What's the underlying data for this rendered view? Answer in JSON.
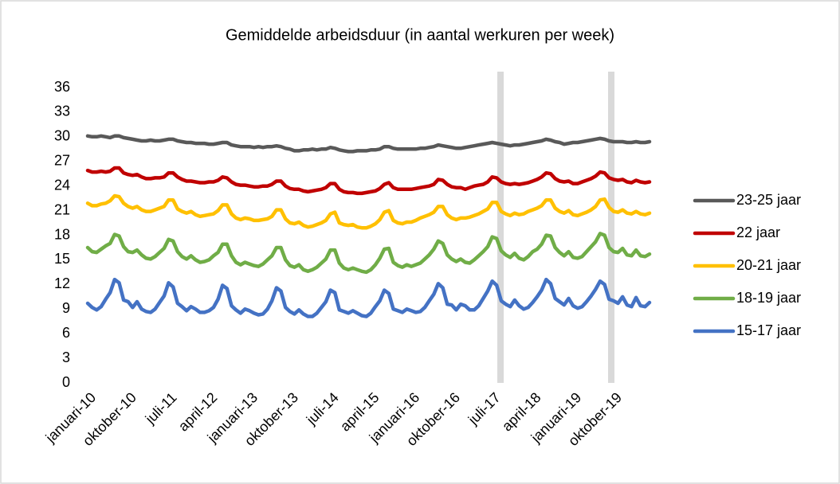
{
  "chart_data": {
    "type": "line",
    "title": "Gemiddelde arbeidsduur (in aantal werkuren per week)",
    "categories": [
      "januari-10",
      null,
      null,
      null,
      null,
      null,
      null,
      null,
      null,
      "oktober-10",
      null,
      null,
      null,
      null,
      null,
      null,
      null,
      null,
      "juli-11",
      null,
      null,
      null,
      null,
      null,
      null,
      null,
      null,
      "april-12",
      null,
      null,
      null,
      null,
      null,
      null,
      null,
      null,
      "januari-13",
      null,
      null,
      null,
      null,
      null,
      null,
      null,
      null,
      "oktober-13",
      null,
      null,
      null,
      null,
      null,
      null,
      null,
      null,
      "juli-14",
      null,
      null,
      null,
      null,
      null,
      null,
      null,
      null,
      "april-15",
      null,
      null,
      null,
      null,
      null,
      null,
      null,
      null,
      "januari-16",
      null,
      null,
      null,
      null,
      null,
      null,
      null,
      null,
      "oktober-16",
      null,
      null,
      null,
      null,
      null,
      null,
      null,
      null,
      "juli-17",
      null,
      null,
      null,
      null,
      null,
      null,
      null,
      null,
      "april-18",
      null,
      null,
      null,
      null,
      null,
      null,
      null,
      null,
      "januari-19",
      null,
      null,
      null,
      null,
      null,
      null,
      null,
      null,
      "oktober-19",
      null,
      null,
      null,
      null,
      null,
      null,
      null,
      null
    ],
    "ylim": [
      0,
      36
    ],
    "yticks": [
      0,
      3,
      6,
      9,
      12,
      15,
      18,
      21,
      24,
      27,
      30,
      33,
      36
    ],
    "grid": false,
    "legend": "right",
    "series": [
      {
        "name": "23-25 jaar",
        "color": "#595959",
        "values": [
          30.1,
          30.0,
          30.0,
          30.1,
          30.0,
          29.9,
          30.1,
          30.1,
          29.9,
          29.8,
          29.7,
          29.6,
          29.5,
          29.5,
          29.6,
          29.5,
          29.5,
          29.6,
          29.7,
          29.7,
          29.5,
          29.4,
          29.3,
          29.3,
          29.2,
          29.2,
          29.2,
          29.1,
          29.1,
          29.2,
          29.3,
          29.3,
          29.0,
          28.9,
          28.8,
          28.8,
          28.8,
          28.7,
          28.8,
          28.7,
          28.8,
          28.8,
          28.9,
          28.8,
          28.6,
          28.5,
          28.3,
          28.3,
          28.4,
          28.4,
          28.5,
          28.4,
          28.5,
          28.5,
          28.7,
          28.6,
          28.4,
          28.3,
          28.2,
          28.2,
          28.3,
          28.3,
          28.3,
          28.4,
          28.4,
          28.5,
          28.8,
          28.8,
          28.6,
          28.5,
          28.5,
          28.5,
          28.5,
          28.5,
          28.6,
          28.6,
          28.7,
          28.8,
          29.0,
          28.9,
          28.8,
          28.7,
          28.6,
          28.6,
          28.7,
          28.8,
          28.9,
          29.0,
          29.1,
          29.2,
          29.3,
          29.2,
          29.1,
          29.0,
          28.9,
          29.0,
          29.0,
          29.1,
          29.2,
          29.3,
          29.4,
          29.5,
          29.7,
          29.6,
          29.4,
          29.3,
          29.1,
          29.2,
          29.3,
          29.3,
          29.4,
          29.5,
          29.6,
          29.7,
          29.8,
          29.7,
          29.5,
          29.4,
          29.4,
          29.4,
          29.3,
          29.3,
          29.4,
          29.3,
          29.3,
          29.4
        ]
      },
      {
        "name": "22 jaar",
        "color": "#c00000",
        "values": [
          25.9,
          25.7,
          25.7,
          25.8,
          25.7,
          25.8,
          26.2,
          26.2,
          25.6,
          25.4,
          25.3,
          25.4,
          25.1,
          24.9,
          24.9,
          25.0,
          25.0,
          25.1,
          25.6,
          25.6,
          25.1,
          24.8,
          24.6,
          24.6,
          24.5,
          24.4,
          24.4,
          24.5,
          24.5,
          24.7,
          25.1,
          25.0,
          24.5,
          24.2,
          24.1,
          24.1,
          24.0,
          23.9,
          23.9,
          24.0,
          24.0,
          24.2,
          24.6,
          24.6,
          24.0,
          23.7,
          23.6,
          23.6,
          23.4,
          23.3,
          23.4,
          23.5,
          23.6,
          23.8,
          24.3,
          24.3,
          23.6,
          23.3,
          23.2,
          23.2,
          23.1,
          23.1,
          23.2,
          23.3,
          23.4,
          23.7,
          24.2,
          24.4,
          23.8,
          23.6,
          23.6,
          23.6,
          23.6,
          23.7,
          23.8,
          23.9,
          24.0,
          24.2,
          24.8,
          24.7,
          24.2,
          23.9,
          23.8,
          23.8,
          23.6,
          23.8,
          24.0,
          24.1,
          24.2,
          24.5,
          25.1,
          25.0,
          24.5,
          24.3,
          24.2,
          24.3,
          24.2,
          24.3,
          24.4,
          24.6,
          24.8,
          25.1,
          25.6,
          25.5,
          24.9,
          24.6,
          24.5,
          24.6,
          24.3,
          24.3,
          24.5,
          24.7,
          24.9,
          25.2,
          25.7,
          25.6,
          25.0,
          24.8,
          24.7,
          24.8,
          24.5,
          24.4,
          24.7,
          24.5,
          24.4,
          24.5
        ]
      },
      {
        "name": "20-21 jaar",
        "color": "#ffc000",
        "values": [
          21.9,
          21.6,
          21.6,
          21.8,
          21.9,
          22.2,
          22.8,
          22.7,
          21.9,
          21.5,
          21.3,
          21.5,
          21.1,
          20.9,
          20.9,
          21.1,
          21.3,
          21.5,
          22.3,
          22.3,
          21.2,
          20.9,
          20.7,
          20.9,
          20.5,
          20.3,
          20.4,
          20.5,
          20.6,
          21.0,
          21.7,
          21.7,
          20.6,
          20.1,
          19.9,
          20.1,
          20.0,
          19.8,
          19.8,
          19.9,
          20.0,
          20.3,
          21.1,
          21.1,
          20.0,
          19.5,
          19.4,
          19.6,
          19.2,
          19.0,
          19.1,
          19.3,
          19.5,
          19.8,
          20.6,
          20.8,
          19.5,
          19.3,
          19.2,
          19.3,
          19.0,
          18.9,
          18.9,
          19.1,
          19.4,
          19.9,
          20.8,
          21.0,
          19.8,
          19.5,
          19.4,
          19.6,
          19.6,
          19.8,
          20.1,
          20.3,
          20.5,
          20.8,
          21.5,
          21.5,
          20.5,
          20.1,
          19.9,
          20.1,
          20.1,
          20.2,
          20.4,
          20.6,
          20.9,
          21.2,
          22.0,
          22.0,
          20.9,
          20.6,
          20.4,
          20.7,
          20.5,
          20.6,
          20.9,
          21.1,
          21.3,
          21.6,
          22.3,
          22.3,
          21.3,
          20.9,
          20.7,
          21.0,
          20.5,
          20.4,
          20.6,
          20.8,
          21.1,
          21.5,
          22.3,
          22.4,
          21.4,
          20.9,
          20.8,
          21.1,
          20.7,
          20.6,
          20.9,
          20.6,
          20.5,
          20.7
        ]
      },
      {
        "name": "18-19 jaar",
        "color": "#70ad47",
        "values": [
          16.5,
          16.0,
          15.9,
          16.3,
          16.7,
          17.0,
          18.1,
          17.9,
          16.6,
          16.0,
          15.9,
          16.2,
          15.6,
          15.2,
          15.1,
          15.4,
          15.9,
          16.4,
          17.5,
          17.3,
          16.0,
          15.4,
          15.1,
          15.5,
          15.0,
          14.7,
          14.8,
          15.0,
          15.5,
          15.9,
          16.9,
          16.9,
          15.5,
          14.7,
          14.4,
          14.7,
          14.5,
          14.3,
          14.2,
          14.5,
          15.0,
          15.5,
          16.5,
          16.5,
          15.0,
          14.3,
          14.1,
          14.4,
          13.8,
          13.6,
          13.8,
          14.1,
          14.6,
          15.1,
          16.2,
          16.2,
          14.6,
          14.0,
          13.8,
          14.0,
          13.8,
          13.6,
          13.5,
          13.8,
          14.4,
          15.2,
          16.3,
          16.4,
          14.7,
          14.3,
          14.1,
          14.4,
          14.2,
          14.4,
          14.6,
          15.1,
          15.6,
          16.3,
          17.3,
          17.0,
          15.6,
          15.1,
          14.8,
          15.1,
          14.7,
          14.6,
          15.0,
          15.5,
          16.0,
          16.6,
          17.8,
          17.6,
          16.1,
          15.6,
          15.3,
          15.8,
          15.2,
          15.0,
          15.4,
          16.0,
          16.3,
          16.9,
          18.0,
          17.9,
          16.5,
          15.9,
          15.5,
          16.0,
          15.3,
          15.2,
          15.4,
          16.0,
          16.6,
          17.2,
          18.2,
          18.0,
          16.5,
          16.0,
          15.9,
          16.4,
          15.6,
          15.5,
          16.2,
          15.5,
          15.4,
          15.7
        ]
      },
      {
        "name": "15-17 jaar",
        "color": "#4472c4",
        "values": [
          9.7,
          9.2,
          8.9,
          9.3,
          10.2,
          11.0,
          12.6,
          12.2,
          10.1,
          9.9,
          9.2,
          9.9,
          9.0,
          8.7,
          8.6,
          9.0,
          9.8,
          10.6,
          12.2,
          11.7,
          9.7,
          9.3,
          8.8,
          9.3,
          9.0,
          8.6,
          8.6,
          8.8,
          9.2,
          10.2,
          11.9,
          11.5,
          9.4,
          8.9,
          8.5,
          9.0,
          8.8,
          8.5,
          8.3,
          8.4,
          9.0,
          10.0,
          11.6,
          11.2,
          9.2,
          8.7,
          8.4,
          8.9,
          8.4,
          8.1,
          8.1,
          8.5,
          9.2,
          9.9,
          11.3,
          11.0,
          8.9,
          8.7,
          8.5,
          8.8,
          8.5,
          8.2,
          8.1,
          8.5,
          9.3,
          10.0,
          11.3,
          10.9,
          9.0,
          8.8,
          8.6,
          9.0,
          8.8,
          8.6,
          8.7,
          9.2,
          10.0,
          10.8,
          12.1,
          11.6,
          9.6,
          9.5,
          8.9,
          9.6,
          9.4,
          8.9,
          8.9,
          9.4,
          10.3,
          11.2,
          12.4,
          11.9,
          10.0,
          9.6,
          9.3,
          10.1,
          9.4,
          9.0,
          9.2,
          9.8,
          10.5,
          11.3,
          12.6,
          12.1,
          10.3,
          9.9,
          9.5,
          10.3,
          9.4,
          9.1,
          9.3,
          9.9,
          10.6,
          11.4,
          12.4,
          12.0,
          10.2,
          10.0,
          9.7,
          10.5,
          9.5,
          9.3,
          10.4,
          9.4,
          9.3,
          9.8
        ]
      }
    ]
  }
}
